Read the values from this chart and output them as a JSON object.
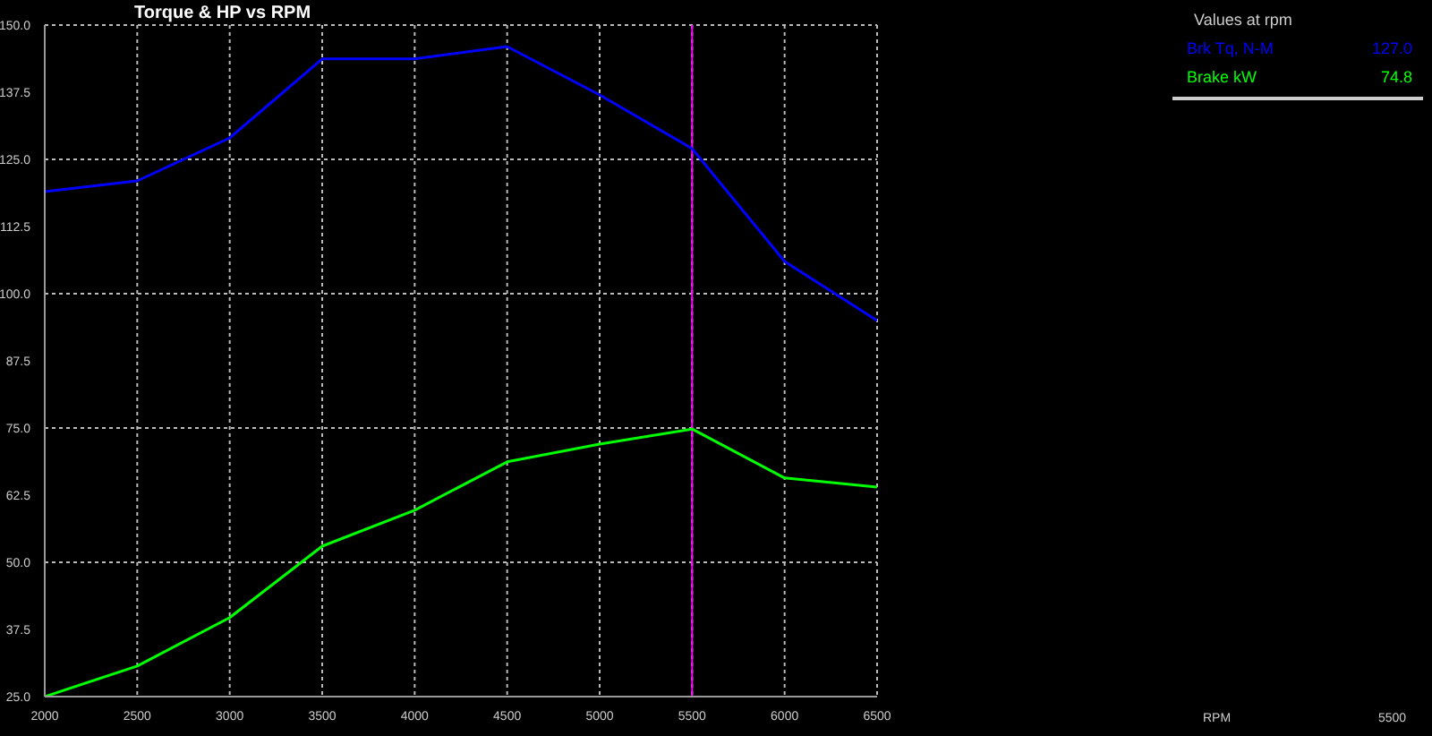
{
  "chart_data": {
    "type": "line",
    "title": "Torque & HP vs RPM",
    "legend_title": "Values at rpm",
    "x": [
      2000,
      2500,
      3000,
      3500,
      4000,
      4500,
      5000,
      5500,
      6000,
      6500
    ],
    "series": [
      {
        "name": "Brk Tq, N-M",
        "color": "#0000ff",
        "values": [
          119.0,
          121.0,
          129.0,
          143.7,
          143.7,
          146.0,
          137.0,
          127.0,
          106.0,
          95.0
        ]
      },
      {
        "name": "Brake kW",
        "color": "#00ff00",
        "values": [
          25.0,
          30.7,
          39.7,
          53.0,
          59.7,
          68.7,
          72.0,
          74.8,
          65.7,
          64.0
        ]
      }
    ],
    "annotations": [
      "127.0",
      "74.8",
      "RPM",
      "5500"
    ],
    "ref_lines": [
      {
        "axis": "x",
        "value": 5500,
        "color": "#ff00ff"
      }
    ],
    "xlim": [
      2000,
      6500
    ],
    "xticks": [
      2000,
      2500,
      3000,
      3500,
      4000,
      4500,
      5000,
      5500,
      6000,
      6500
    ],
    "ylim": [
      25,
      150
    ],
    "yticks": [
      {
        "value": 25,
        "label": "25.0"
      },
      {
        "value": 37.5,
        "label": "37.5"
      },
      {
        "value": 50,
        "label": "50.0"
      },
      {
        "value": 62.5,
        "label": "62.5"
      },
      {
        "value": 75,
        "label": "75.0"
      },
      {
        "value": 87.5,
        "label": "87.5"
      },
      {
        "value": 100,
        "label": "100.0"
      },
      {
        "value": 112.5,
        "label": "112.5"
      },
      {
        "value": 125,
        "label": "125.0"
      },
      {
        "value": 137.5,
        "label": "137.5"
      },
      {
        "value": 150,
        "label": "150.0"
      }
    ],
    "grid": true,
    "legend": "top right",
    "marker": "none",
    "line_style": "solid"
  }
}
